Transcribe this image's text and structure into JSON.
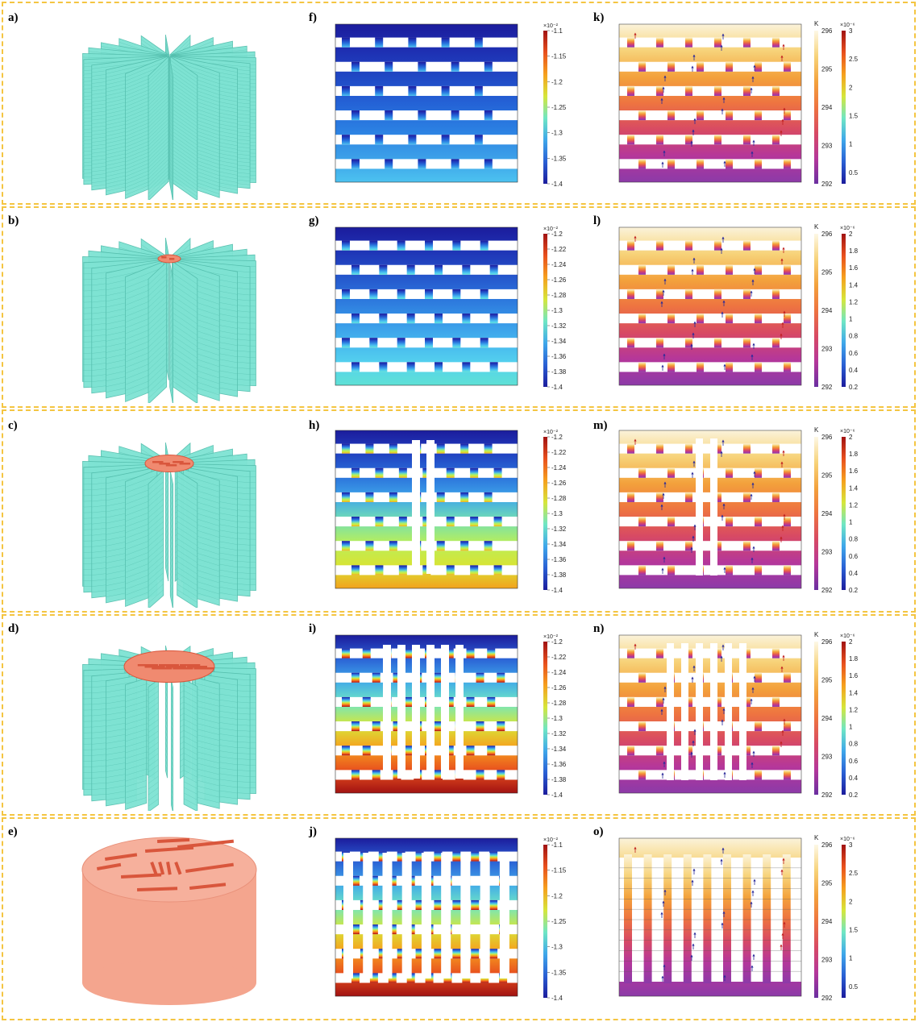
{
  "rows": [
    {
      "labels": [
        "a)",
        "f)",
        "k)"
      ],
      "style": "full",
      "leaves": 4,
      "f": {
        "colors": [
          "#1c1c9c",
          "#1e2fb2",
          "#2048c4",
          "#2462d6",
          "#2b7fe2",
          "#3b9ee8",
          "#4cc2f0"
        ]
      },
      "pressure": {
        "exp": "×10⁻²",
        "ticks": [
          "-1.1",
          "-1.15",
          "-1.2",
          "-1.25",
          "-1.3",
          "-1.35",
          "-1.4"
        ]
      },
      "velocity": {
        "unit": "m/s",
        "exp": "×10⁻⁶",
        "ticks": [
          "3",
          "2.5",
          "2",
          "1.5",
          "1",
          "0.5"
        ]
      }
    },
    {
      "labels": [
        "b)",
        "g)",
        "l)"
      ],
      "style": "small",
      "leaves": 3,
      "f": {
        "colors": [
          "#1c1c9c",
          "#1e32b4",
          "#2450c8",
          "#2a70da",
          "#3592e6",
          "#44b3ee",
          "#54d1ee",
          "#5fe1d5"
        ]
      },
      "pressure": {
        "exp": "×10⁻²",
        "ticks": [
          "-1.2",
          "-1.22",
          "-1.24",
          "-1.26",
          "-1.28",
          "-1.3",
          "-1.32",
          "-1.34",
          "-1.36",
          "-1.38",
          "-1.4"
        ]
      },
      "velocity": {
        "unit": "m/s",
        "exp": "×10⁻⁶",
        "ticks": [
          "2",
          "1.8",
          "1.6",
          "1.4",
          "1.2",
          "1",
          "0.8",
          "0.6",
          "0.4",
          "0.2"
        ]
      }
    },
    {
      "labels": [
        "c)",
        "h)",
        "m)"
      ],
      "style": "medium",
      "leaves": 2,
      "f": {
        "colors": [
          "#1c1c9c",
          "#2040c0",
          "#2a70da",
          "#3fa7ea",
          "#74e0b0",
          "#b9ee5a",
          "#d8e434",
          "#f2a21e"
        ]
      },
      "pressure": {
        "exp": "×10⁻²",
        "ticks": [
          "-1.2",
          "-1.22",
          "-1.24",
          "-1.26",
          "-1.28",
          "-1.3",
          "-1.32",
          "-1.34",
          "-1.36",
          "-1.38",
          "-1.4"
        ]
      },
      "velocity": {
        "unit": "m/s",
        "exp": "×10⁻⁶",
        "ticks": [
          "2",
          "1.8",
          "1.6",
          "1.4",
          "1.2",
          "1",
          "0.8",
          "0.6",
          "0.4",
          "0.2"
        ]
      }
    },
    {
      "labels": [
        "d)",
        "i)",
        "n)"
      ],
      "style": "large",
      "leaves": 1,
      "f": {
        "colors": [
          "#1c1c9c",
          "#2a5fd4",
          "#3fa7ea",
          "#6fe6c4",
          "#d6e63a",
          "#f6a01e",
          "#e8501e",
          "#a11212"
        ]
      },
      "pressure": {
        "exp": "×10⁻²",
        "ticks": [
          "-1.2",
          "-1.22",
          "-1.24",
          "-1.26",
          "-1.28",
          "-1.3",
          "-1.32",
          "-1.34",
          "-1.36",
          "-1.38",
          "-1.4"
        ]
      },
      "velocity": {
        "unit": "m/s",
        "exp": "×10⁻⁶",
        "ticks": [
          "2",
          "1.8",
          "1.6",
          "1.4",
          "1.2",
          "1",
          "0.8",
          "0.6",
          "0.4",
          "0.2"
        ]
      }
    },
    {
      "labels": [
        "e)",
        "j)",
        "o)"
      ],
      "style": "cylinder",
      "leaves": 0,
      "f": {
        "colors": [
          "#1c1c9c",
          "#2a5fd4",
          "#3fa7ea",
          "#6fe6c4",
          "#d6e63a",
          "#f6a01e",
          "#e8501e",
          "#a11212"
        ]
      },
      "pressure": {
        "exp": "×10⁻²",
        "ticks": [
          "-1.1",
          "-1.15",
          "-1.2",
          "-1.25",
          "-1.3",
          "-1.35",
          "-1.4"
        ]
      },
      "velocity": {
        "unit": "m/s",
        "exp": "×10⁻⁶",
        "ticks": [
          "3",
          "2.5",
          "2",
          "1.5",
          "1",
          "0.5"
        ]
      }
    }
  ],
  "temperature": {
    "unit": "K",
    "ticks": [
      "296",
      "295",
      "294",
      "293",
      "292"
    ]
  },
  "colors": {
    "fin": "#7ee3d3",
    "fin_dark": "#55bfae",
    "copper": "#f08a70",
    "copper_dark": "#d9563c",
    "border": "#f4c542"
  }
}
